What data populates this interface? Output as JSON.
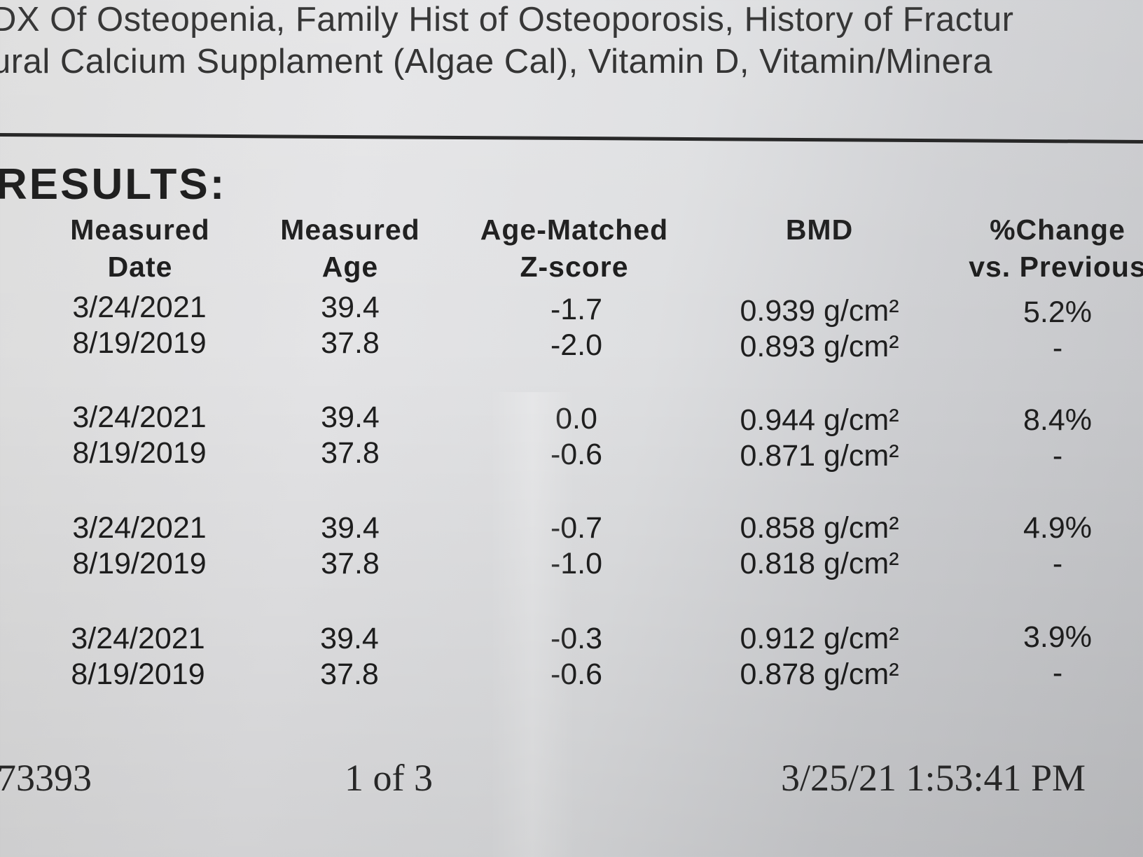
{
  "header": {
    "line1": "DX Of Osteopenia, Family Hist of Osteoporosis, History of Fractur",
    "line2": "ural Calcium Supplament (Algae Cal), Vitamin D, Vitamin/Minera"
  },
  "results": {
    "title": "RESULTS:",
    "columns": [
      {
        "line1": "Measured",
        "line2": "Date"
      },
      {
        "line1": "Measured",
        "line2": "Age"
      },
      {
        "line1": "Age-Matched",
        "line2": "Z-score"
      },
      {
        "line1": "BMD",
        "line2": ""
      },
      {
        "line1": "%Change",
        "line2": "vs. Previous"
      }
    ],
    "rows": [
      {
        "date": "3/24/2021",
        "age": "39.4",
        "z": "-1.7",
        "bmd": "0.939 g/cm²",
        "change": "5.2%"
      },
      {
        "date": "8/19/2019",
        "age": "37.8",
        "z": "-2.0",
        "bmd": "0.893 g/cm²",
        "change": "-"
      },
      {
        "date": "3/24/2021",
        "age": "39.4",
        "z": "0.0",
        "bmd": "0.944 g/cm²",
        "change": "8.4%"
      },
      {
        "date": "8/19/2019",
        "age": "37.8",
        "z": "-0.6",
        "bmd": "0.871 g/cm²",
        "change": "-"
      },
      {
        "date": "3/24/2021",
        "age": "39.4",
        "z": "-0.7",
        "bmd": "0.858 g/cm²",
        "change": "4.9%"
      },
      {
        "date": "8/19/2019",
        "age": "37.8",
        "z": "-1.0",
        "bmd": "0.818 g/cm²",
        "change": "-"
      },
      {
        "date": "3/24/2021",
        "age": "39.4",
        "z": "-0.3",
        "bmd": "0.912 g/cm²",
        "change": "3.9%"
      },
      {
        "date": "8/19/2019",
        "age": "37.8",
        "z": "-0.6",
        "bmd": "0.878 g/cm²",
        "change": "-"
      }
    ]
  },
  "footer": {
    "id": "73393",
    "page": "1 of 3",
    "timestamp": "3/25/21 1:53:41 PM"
  }
}
